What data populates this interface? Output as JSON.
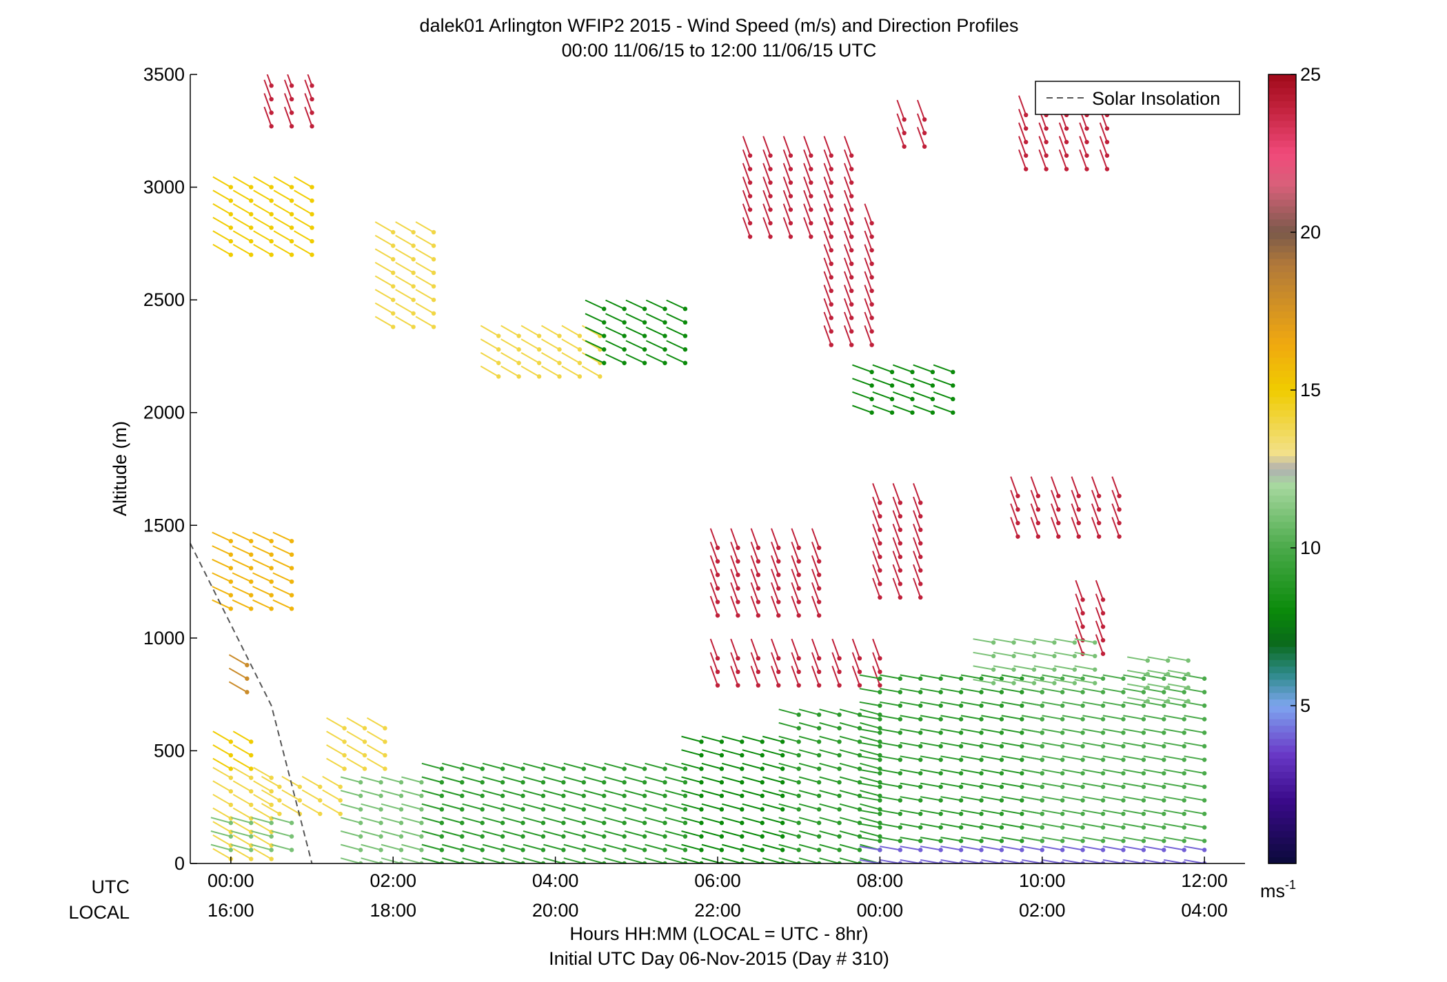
{
  "chart_data": {
    "type": "wind-barb profile",
    "title": "dalek01 Arlington WFIP2 2015 - Wind Speed (m/s) and Direction Profiles",
    "subtitle": "00:00 11/06/15 to 12:00 11/06/15  UTC",
    "ylabel": "Altitude (m)",
    "xlabel": "Hours HH:MM  (LOCAL = UTC - 8hr)",
    "xlabel2": "Initial UTC Day 06-Nov-2015 (Day # 310)",
    "ylim": [
      0,
      3500
    ],
    "xlim_hours": [
      -0.5,
      12.5
    ],
    "y_ticks": [
      0,
      500,
      1000,
      1500,
      2000,
      2500,
      3000,
      3500
    ],
    "x_row_labels": {
      "utc": "UTC",
      "local": "LOCAL"
    },
    "x_ticks": [
      {
        "utc": "00:00",
        "local": "16:00",
        "hour": 0
      },
      {
        "utc": "02:00",
        "local": "18:00",
        "hour": 2
      },
      {
        "utc": "04:00",
        "local": "20:00",
        "hour": 4
      },
      {
        "utc": "06:00",
        "local": "22:00",
        "hour": 6
      },
      {
        "utc": "08:00",
        "local": "00:00",
        "hour": 8
      },
      {
        "utc": "10:00",
        "local": "02:00",
        "hour": 10
      },
      {
        "utc": "12:00",
        "local": "04:00",
        "hour": 12
      }
    ],
    "legend": {
      "label": "Solar Insolation",
      "position": "top-right"
    },
    "solar_insolation": {
      "x": [
        -0.5,
        0.5,
        1.0
      ],
      "y": [
        1420,
        700,
        0
      ]
    },
    "colorbar": {
      "range": [
        0,
        25
      ],
      "ticks": [
        5,
        10,
        15,
        20,
        25
      ],
      "unit_label": "ms",
      "unit_sup": "-1",
      "stops": [
        {
          "v": 0,
          "c": "#0a0a3a"
        },
        {
          "v": 2,
          "c": "#3a0a8a"
        },
        {
          "v": 3.5,
          "c": "#6a3ac8"
        },
        {
          "v": 5,
          "c": "#7ea6f0"
        },
        {
          "v": 6,
          "c": "#2e8a8a"
        },
        {
          "v": 7,
          "c": "#0a6a1a"
        },
        {
          "v": 8,
          "c": "#0a8a0a"
        },
        {
          "v": 10,
          "c": "#4aaa4a"
        },
        {
          "v": 12,
          "c": "#a8d8a0"
        },
        {
          "v": 12.5,
          "c": "#b0b0b0"
        },
        {
          "v": 13,
          "c": "#f2e08a"
        },
        {
          "v": 15,
          "c": "#f0cc00"
        },
        {
          "v": 16.5,
          "c": "#f0a810"
        },
        {
          "v": 19,
          "c": "#b0783a"
        },
        {
          "v": 20,
          "c": "#7a5a4a"
        },
        {
          "v": 21.5,
          "c": "#d8607a"
        },
        {
          "v": 22.5,
          "c": "#f04a7a"
        },
        {
          "v": 24,
          "c": "#c0203a"
        },
        {
          "v": 25,
          "c": "#a00a1a"
        }
      ]
    },
    "barb_groups": [
      {
        "t": [
          0.0,
          0.6
        ],
        "z": [
          20,
          380
        ],
        "speed": 14,
        "dir": 300
      },
      {
        "t": [
          0.6,
          1.4
        ],
        "z": [
          220,
          380
        ],
        "speed": 14,
        "dir": 300
      },
      {
        "t": [
          0.0,
          0.8
        ],
        "z": [
          60,
          200
        ],
        "speed": 11,
        "dir": 285
      },
      {
        "t": [
          1.4,
          2.0
        ],
        "z": [
          420,
          640
        ],
        "speed": 14,
        "dir": 300
      },
      {
        "t": [
          1.6,
          3.0
        ],
        "z": [
          0,
          380
        ],
        "speed": 11,
        "dir": 285
      },
      {
        "t": [
          0.0,
          0.4
        ],
        "z": [
          420,
          560
        ],
        "speed": 15,
        "dir": 300
      },
      {
        "t": [
          0.0,
          0.8
        ],
        "z": [
          1130,
          1430
        ],
        "speed": 16,
        "dir": 295
      },
      {
        "t": [
          0.2,
          0.4
        ],
        "z": [
          760,
          910
        ],
        "speed": 18,
        "dir": 300
      },
      {
        "t": [
          0.0,
          1.0
        ],
        "z": [
          2700,
          3020
        ],
        "speed": 15,
        "dir": 300
      },
      {
        "t": [
          2.0,
          2.6
        ],
        "z": [
          2380,
          2800
        ],
        "speed": 14,
        "dir": 300
      },
      {
        "t": [
          3.3,
          4.6
        ],
        "z": [
          2160,
          2360
        ],
        "speed": 14,
        "dir": 300
      },
      {
        "t": [
          4.6,
          5.8
        ],
        "z": [
          2220,
          2500
        ],
        "speed": 8,
        "dir": 295
      },
      {
        "t": [
          0.5,
          1.2
        ],
        "z": [
          3270,
          3500
        ],
        "speed": 24,
        "dir": 340
      },
      {
        "t": [
          6.4,
          7.8
        ],
        "z": [
          2780,
          3160
        ],
        "speed": 24,
        "dir": 340
      },
      {
        "t": [
          7.4,
          7.9
        ],
        "z": [
          2300,
          2840
        ],
        "speed": 24,
        "dir": 340
      },
      {
        "t": [
          7.9,
          8.9
        ],
        "z": [
          2000,
          2200
        ],
        "speed": 8,
        "dir": 290
      },
      {
        "t": [
          8.3,
          8.6
        ],
        "z": [
          3180,
          3340
        ],
        "speed": 24,
        "dir": 340
      },
      {
        "t": [
          9.8,
          10.9
        ],
        "z": [
          3080,
          3340
        ],
        "speed": 24,
        "dir": 340
      },
      {
        "t": [
          6.0,
          7.4
        ],
        "z": [
          1100,
          1420
        ],
        "speed": 24,
        "dir": 340
      },
      {
        "t": [
          8.0,
          8.6
        ],
        "z": [
          1180,
          1620
        ],
        "speed": 24,
        "dir": 340
      },
      {
        "t": [
          9.7,
          11.0
        ],
        "z": [
          1450,
          1660
        ],
        "speed": 24,
        "dir": 340
      },
      {
        "t": [
          10.5,
          10.8
        ],
        "z": [
          930,
          1170
        ],
        "speed": 24,
        "dir": 340
      },
      {
        "t": [
          6.0,
          8.0
        ],
        "z": [
          790,
          930
        ],
        "speed": 24,
        "dir": 340
      },
      {
        "t": [
          2.6,
          5.8
        ],
        "z": [
          0,
          420
        ],
        "speed": 9,
        "dir": 285
      },
      {
        "t": [
          5.8,
          7.0
        ],
        "z": [
          0,
          560
        ],
        "speed": 8,
        "dir": 285
      },
      {
        "t": [
          7.0,
          8.0
        ],
        "z": [
          0,
          660
        ],
        "speed": 9,
        "dir": 285
      },
      {
        "t": [
          8.0,
          10.0
        ],
        "z": [
          100,
          820
        ],
        "speed": 9,
        "dir": 280
      },
      {
        "t": [
          10.0,
          12.2
        ],
        "z": [
          100,
          820
        ],
        "speed": 10,
        "dir": 280
      },
      {
        "t": [
          8.0,
          12.2
        ],
        "z": [
          0,
          90
        ],
        "speed": 4,
        "dir": 280
      },
      {
        "t": [
          9.4,
          10.8
        ],
        "z": [
          800,
          1000
        ],
        "speed": 11,
        "dir": 280
      },
      {
        "t": [
          11.3,
          12.0
        ],
        "z": [
          720,
          940
        ],
        "speed": 11,
        "dir": 280
      }
    ]
  }
}
